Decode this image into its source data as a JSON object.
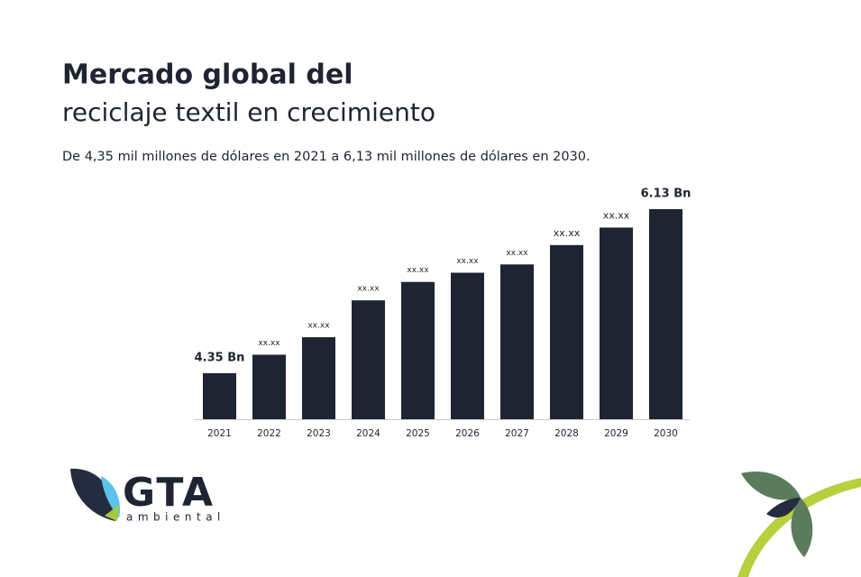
{
  "header": {
    "title_line1": "Mercado global del",
    "title_line2": "reciclaje textil en crecimiento",
    "subtitle": "De 4,35 mil millones de dólares en 2021 a 6,13 mil millones de dólares en 2030."
  },
  "chart_data": {
    "type": "bar",
    "categories": [
      "2021",
      "2022",
      "2023",
      "2024",
      "2025",
      "2026",
      "2027",
      "2028",
      "2029",
      "2030"
    ],
    "values": [
      4.35,
      4.55,
      4.74,
      5.14,
      5.34,
      5.44,
      5.53,
      5.74,
      5.93,
      6.13
    ],
    "value_labels": [
      "4.35 Bn",
      "xx.xx",
      "xx.xx",
      "xx.xx",
      "xx.xx",
      "xx.xx",
      "xx.xx",
      "xx.xx",
      "xx.xx",
      "6.13 Bn"
    ],
    "color": "#1f2433",
    "ylim": [
      3.85,
      6.35
    ]
  },
  "logo": {
    "name": "GTA",
    "tagline": "ambiental"
  }
}
